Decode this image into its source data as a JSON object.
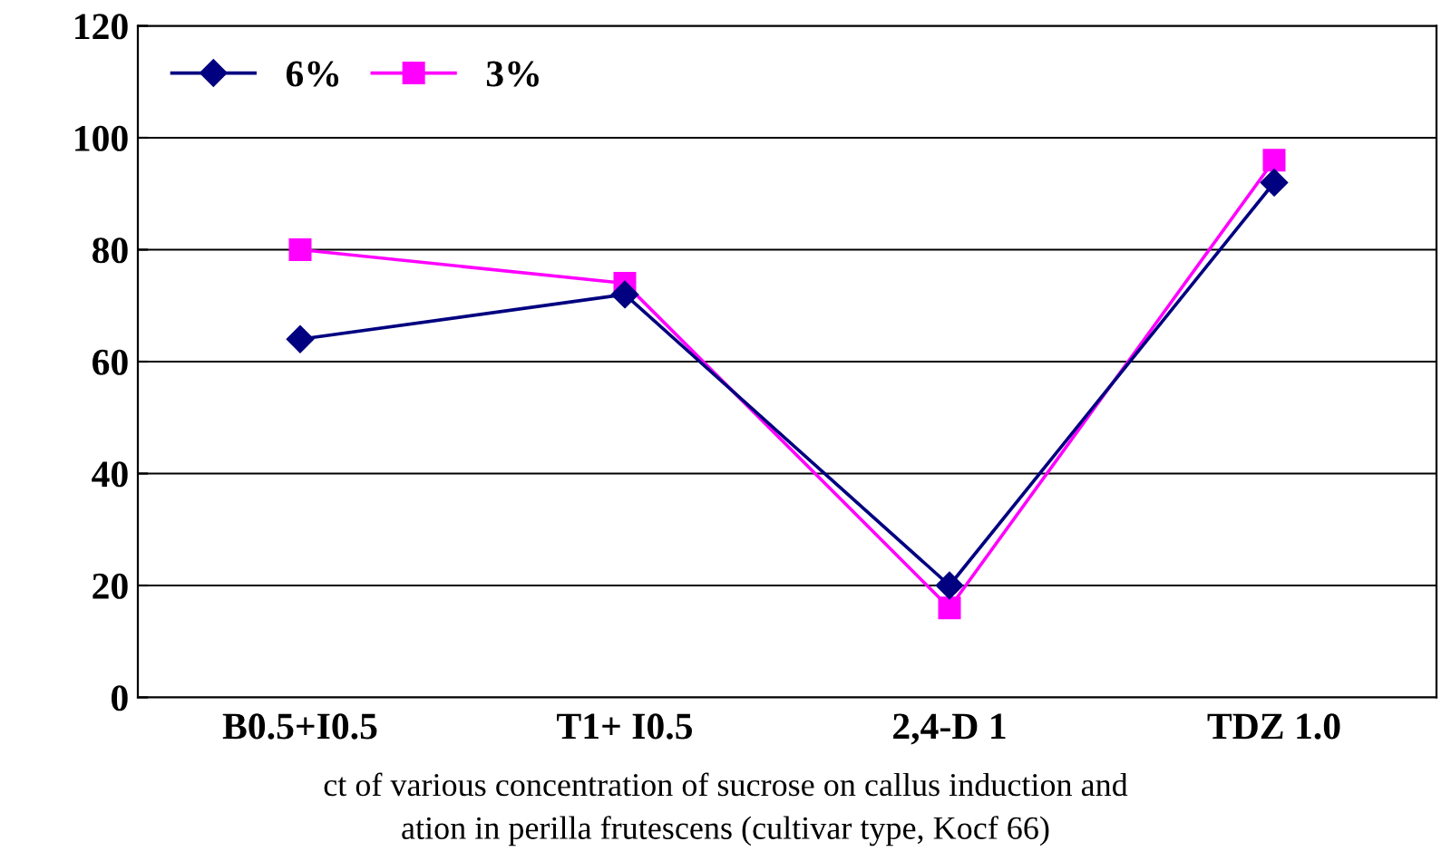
{
  "chart_data": {
    "type": "line",
    "categories": [
      "B0.5+I0.5",
      "T1+ I0.5",
      "2,4-D 1",
      "TDZ 1.0"
    ],
    "series": [
      {
        "name": "6%",
        "color": "#000080",
        "marker": "diamond",
        "values": [
          64,
          72,
          20,
          92
        ]
      },
      {
        "name": "3%",
        "color": "#ff00ff",
        "marker": "square",
        "values": [
          80,
          74,
          16,
          96
        ]
      }
    ],
    "ylim": [
      0,
      120
    ],
    "yticks": [
      0,
      20,
      40,
      60,
      80,
      100,
      120
    ],
    "grid": "y",
    "legend": "top left",
    "annotations": [
      "ct of various concentration of sucrose on callus induction and",
      "ation in perilla frutescens (cultivar type, Kocf 66)"
    ]
  }
}
